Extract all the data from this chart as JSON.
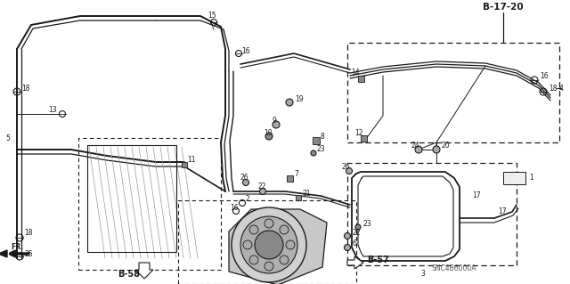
{
  "bg_color": "#ffffff",
  "lc": "#1a1a1a",
  "diagram_code": "SNC4B6000A",
  "ref_top": "B-17-20",
  "ref_b58": "B-58",
  "ref_b57": "B-57",
  "figsize": [
    6.4,
    3.19
  ],
  "dpi": 100
}
